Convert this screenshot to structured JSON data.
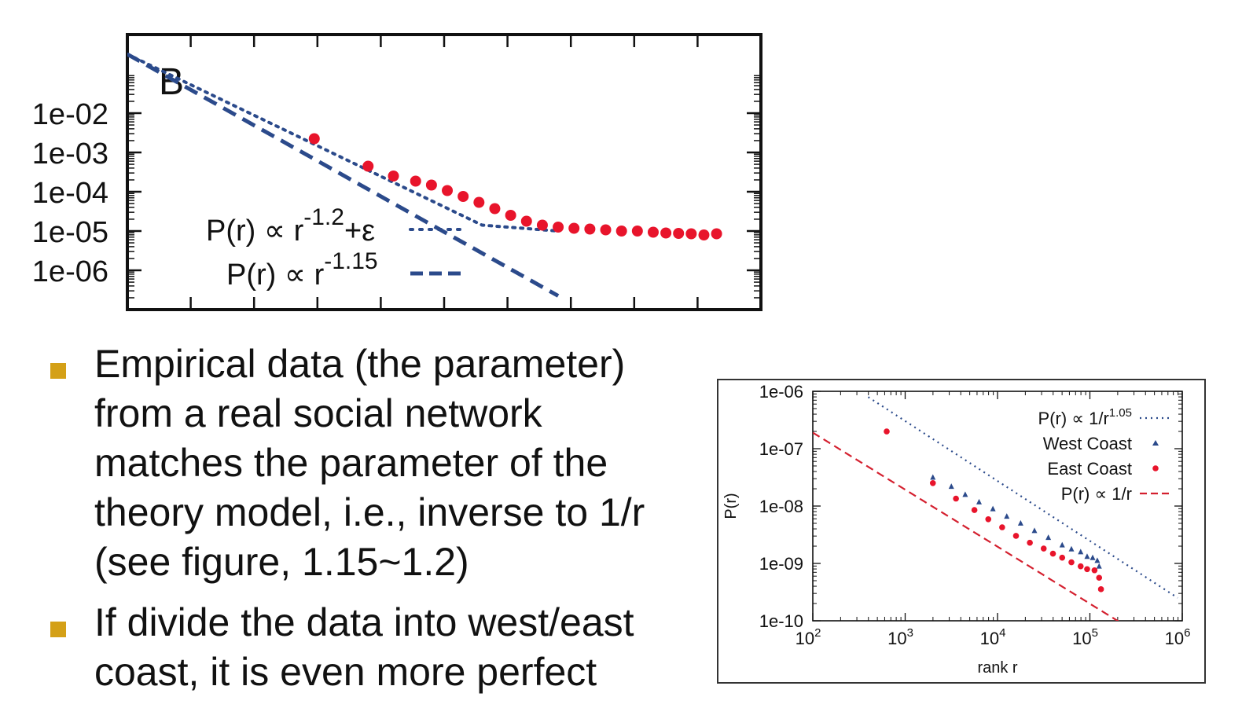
{
  "chart_data": [
    {
      "type": "scatter",
      "panel_label": "B",
      "y_scale": "log",
      "yticks": [
        "1e-02",
        "1e-03",
        "1e-04",
        "1e-05",
        "1e-06"
      ],
      "legend": [
        {
          "label_base": "P(r) ∝ r",
          "label_exp": "-1.2",
          "label_tail": "+ε",
          "style": "dotted",
          "color": "#2b4a8b"
        },
        {
          "label_base": "P(r) ∝ r",
          "label_exp": "-1.15",
          "label_tail": "",
          "style": "dashed",
          "color": "#2b4a8b"
        }
      ],
      "legend_position": "bottom-left",
      "lines": [
        {
          "name": "r^-1.2+eps",
          "style": "dotted",
          "points": [
            [
              0.0,
              -0.5
            ],
            [
              5.6,
              -4.85
            ],
            [
              6.8,
              -5.0
            ]
          ]
        },
        {
          "name": "r^-1.15",
          "style": "dashed",
          "points": [
            [
              0.0,
              -0.5
            ],
            [
              6.8,
              -6.65
            ]
          ]
        }
      ],
      "series": [
        {
          "name": "data",
          "color": "#e8142b",
          "points": [
            [
              2.95,
              -2.65
            ],
            [
              3.8,
              -3.35
            ],
            [
              4.2,
              -3.6
            ],
            [
              4.55,
              -3.73
            ],
            [
              4.8,
              -3.83
            ],
            [
              5.05,
              -3.97
            ],
            [
              5.3,
              -4.12
            ],
            [
              5.55,
              -4.27
            ],
            [
              5.8,
              -4.43
            ],
            [
              6.05,
              -4.6
            ],
            [
              6.3,
              -4.75
            ],
            [
              6.55,
              -4.85
            ],
            [
              6.8,
              -4.9
            ],
            [
              7.05,
              -4.93
            ],
            [
              7.3,
              -4.95
            ],
            [
              7.55,
              -4.97
            ],
            [
              7.8,
              -5.0
            ],
            [
              8.05,
              -5.0
            ],
            [
              8.3,
              -5.03
            ],
            [
              8.5,
              -5.05
            ],
            [
              8.7,
              -5.06
            ],
            [
              8.9,
              -5.07
            ],
            [
              9.1,
              -5.1
            ],
            [
              9.3,
              -5.07
            ]
          ]
        }
      ],
      "xlim": [
        0,
        10
      ],
      "ylim": [
        -7,
        0
      ],
      "grid": false
    },
    {
      "type": "scatter",
      "y_scale": "log",
      "x_scale": "log",
      "ylabel": "P(r)",
      "xlabel": "rank r",
      "yticks": [
        "1e-06",
        "1e-07",
        "1e-08",
        "1e-09",
        "1e-10"
      ],
      "xticks": [
        {
          "base": "10",
          "exp": "2"
        },
        {
          "base": "10",
          "exp": "3"
        },
        {
          "base": "10",
          "exp": "4"
        },
        {
          "base": "10",
          "exp": "5"
        },
        {
          "base": "10",
          "exp": "6"
        }
      ],
      "xlim": [
        2,
        6
      ],
      "ylim": [
        -10,
        -6
      ],
      "legend": [
        {
          "label": "P(r) ∝ 1/r",
          "sup": "1.05",
          "style": "dotted",
          "color": "#2b4a8b"
        },
        {
          "label": "West Coast",
          "sup": "",
          "style": "triangle",
          "color": "#2b4a8b"
        },
        {
          "label": "East Coast",
          "sup": "",
          "style": "circle",
          "color": "#e8142b"
        },
        {
          "label": "P(r) ∝ 1/r",
          "sup": "",
          "style": "dashed",
          "color": "#d4202f"
        }
      ],
      "legend_position": "top-right",
      "lines": [
        {
          "name": "1/r^1.05",
          "style": "dotted",
          "color": "#2b4a8b",
          "points": [
            [
              2.6,
              -6.1
            ],
            [
              5.95,
              -9.6
            ]
          ]
        },
        {
          "name": "1/r",
          "style": "dashed",
          "color": "#d4202f",
          "points": [
            [
              2.0,
              -6.72
            ],
            [
              5.35,
              -10.05
            ]
          ]
        }
      ],
      "series": [
        {
          "name": "West Coast",
          "marker": "triangle",
          "color": "#2b4a8b",
          "points": [
            [
              3.3,
              -7.5
            ],
            [
              3.5,
              -7.66
            ],
            [
              3.65,
              -7.8
            ],
            [
              3.8,
              -7.93
            ],
            [
              3.95,
              -8.05
            ],
            [
              4.1,
              -8.18
            ],
            [
              4.25,
              -8.3
            ],
            [
              4.4,
              -8.43
            ],
            [
              4.55,
              -8.55
            ],
            [
              4.7,
              -8.68
            ],
            [
              4.8,
              -8.75
            ],
            [
              4.9,
              -8.8
            ],
            [
              4.97,
              -8.88
            ],
            [
              5.03,
              -8.9
            ],
            [
              5.08,
              -8.95
            ],
            [
              5.1,
              -9.05
            ]
          ]
        },
        {
          "name": "East Coast",
          "marker": "circle",
          "color": "#e8142b",
          "points": [
            [
              2.8,
              -6.7
            ],
            [
              3.3,
              -7.6
            ],
            [
              3.55,
              -7.87
            ],
            [
              3.75,
              -8.07
            ],
            [
              3.9,
              -8.23
            ],
            [
              4.05,
              -8.37
            ],
            [
              4.2,
              -8.52
            ],
            [
              4.35,
              -8.64
            ],
            [
              4.5,
              -8.74
            ],
            [
              4.6,
              -8.83
            ],
            [
              4.7,
              -8.9
            ],
            [
              4.8,
              -8.98
            ],
            [
              4.9,
              -9.05
            ],
            [
              4.97,
              -9.1
            ],
            [
              5.05,
              -9.12
            ],
            [
              5.1,
              -9.25
            ],
            [
              5.12,
              -9.45
            ]
          ]
        }
      ],
      "grid": false
    }
  ],
  "bullets": [
    {
      "lines": [
        "Empirical data (the parameter)",
        "from a real social network",
        "matches the parameter of the",
        "theory model, i.e., inverse to 1/r",
        "(see figure, 1.15~1.2)"
      ]
    },
    {
      "lines": [
        "If divide the data into west/east",
        "coast, it is even more perfect"
      ]
    }
  ]
}
